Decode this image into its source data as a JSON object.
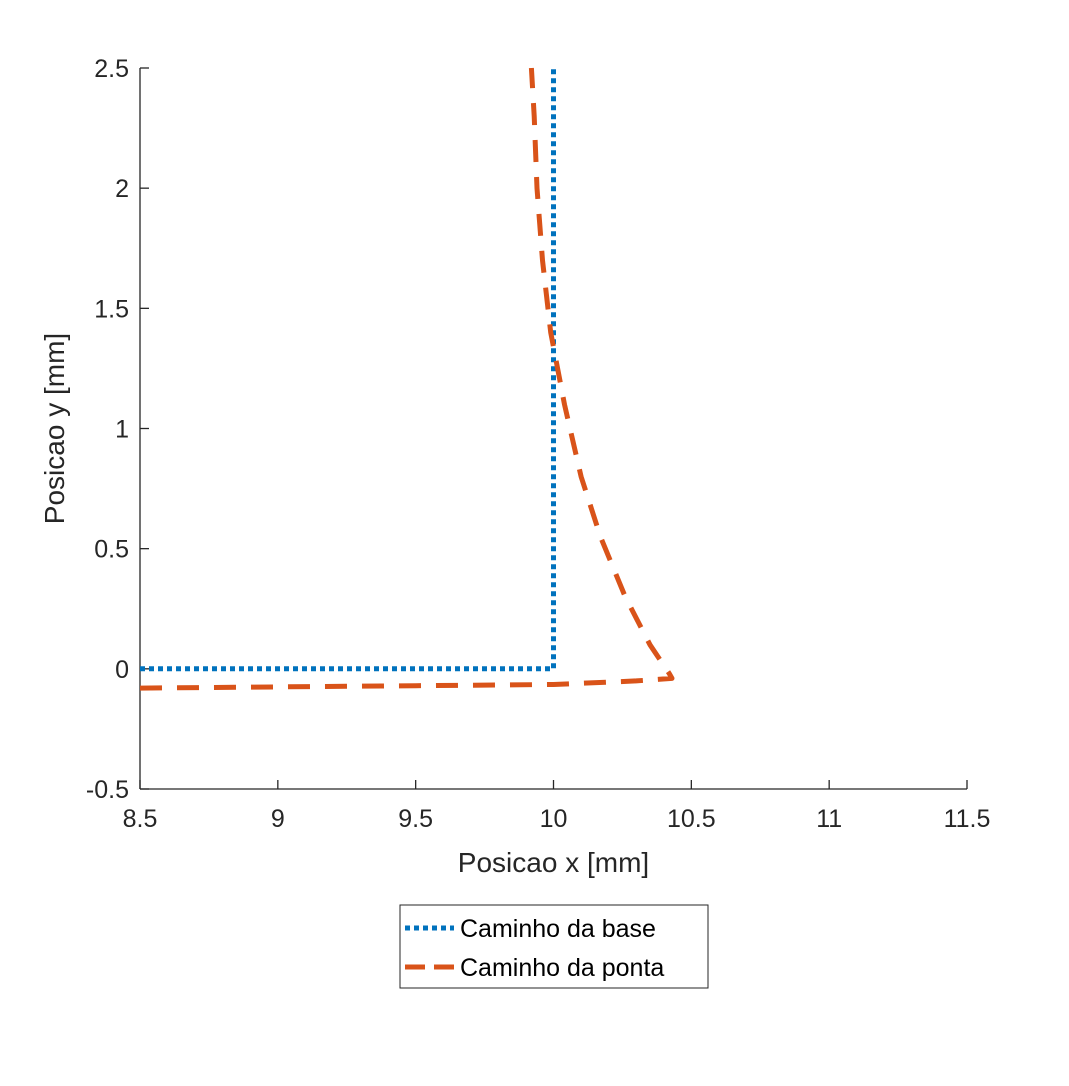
{
  "chart_data": {
    "type": "line",
    "title": "",
    "xlabel": "Posicao x [mm]",
    "ylabel": "Posicao y [mm]",
    "xlim": [
      8.5,
      11.5
    ],
    "ylim": [
      -0.5,
      2.5
    ],
    "xticks": [
      8.5,
      9,
      9.5,
      10,
      10.5,
      11,
      11.5
    ],
    "xtick_labels": [
      "8.5",
      "9",
      "9.5",
      "10",
      "10.5",
      "11",
      "11.5"
    ],
    "yticks": [
      -0.5,
      0,
      0.5,
      1,
      1.5,
      2,
      2.5
    ],
    "ytick_labels": [
      "-0.5",
      "0",
      "0.5",
      "1",
      "1.5",
      "2",
      "2.5"
    ],
    "grid": false,
    "legend_position": "bottom-outside",
    "series": [
      {
        "name": "Caminho da base",
        "color": "#0072BD",
        "style": "dotted",
        "x": [
          8.5,
          10.0,
          10.0
        ],
        "y": [
          0.0,
          0.0,
          2.5
        ]
      },
      {
        "name": "Caminho da ponta",
        "color": "#D95319",
        "style": "dashed",
        "x": [
          8.5,
          9.0,
          9.5,
          10.0,
          10.3,
          10.43,
          10.42,
          10.35,
          10.26,
          10.17,
          10.1,
          10.04,
          9.99,
          9.96,
          9.94,
          9.93,
          9.92
        ],
        "y": [
          -0.08,
          -0.075,
          -0.07,
          -0.065,
          -0.05,
          -0.04,
          -0.02,
          0.1,
          0.3,
          0.55,
          0.8,
          1.1,
          1.4,
          1.7,
          2.0,
          2.3,
          2.5
        ]
      }
    ]
  }
}
